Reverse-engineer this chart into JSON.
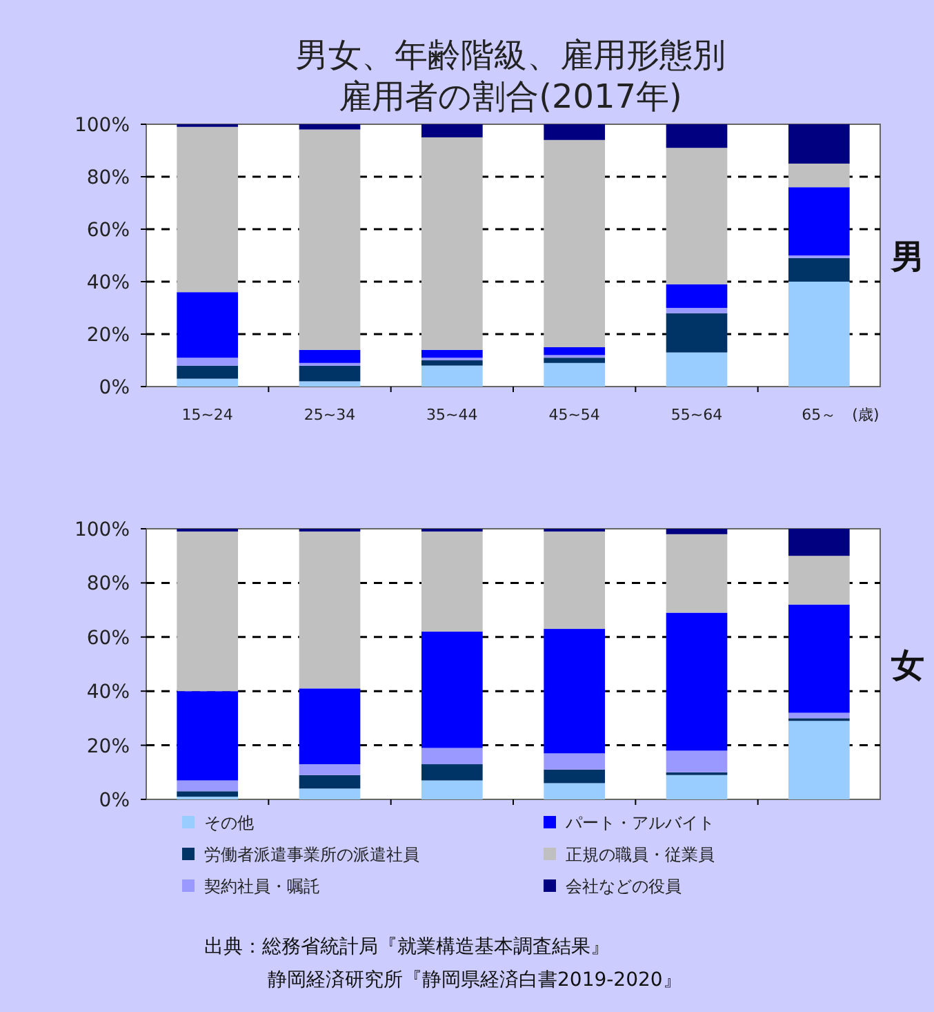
{
  "chart_data": [
    {
      "type": "bar",
      "stacked": true,
      "title": "男女、年齢階級、雇用形態別",
      "subtitle": "雇用者の割合(2017年)",
      "categories": [
        "15~24",
        "25~34",
        "35~44",
        "45~54",
        "55~64",
        "65～"
      ],
      "xlabel": "(歳)",
      "y2label": "男",
      "ylim": [
        0,
        100
      ],
      "yticks": [
        {
          "value": 0,
          "label": "0%"
        },
        {
          "value": 20,
          "label": "20%"
        },
        {
          "value": 40,
          "label": "40%"
        },
        {
          "value": 60,
          "label": "60%"
        },
        {
          "value": 80,
          "label": "80%"
        },
        {
          "value": 100,
          "label": "100%"
        }
      ],
      "grid": "y",
      "legend": false,
      "series": [
        {
          "color": "#99ccff",
          "values": [
            3,
            2,
            8,
            9,
            13,
            40
          ]
        },
        {
          "color": "#003366",
          "values": [
            5,
            6,
            2,
            2,
            15,
            9
          ]
        },
        {
          "color": "#9999ff",
          "values": [
            3,
            1,
            1,
            1,
            2,
            1
          ]
        },
        {
          "color": "#0000ff",
          "values": [
            25,
            5,
            3,
            3,
            9,
            26
          ]
        },
        {
          "color": "#c0c0c0",
          "values": [
            63,
            84,
            81,
            79,
            52,
            9
          ]
        },
        {
          "color": "#000080",
          "values": [
            1,
            2,
            5,
            6,
            9,
            15
          ]
        }
      ]
    },
    {
      "type": "bar",
      "stacked": true,
      "categories": [
        null,
        null,
        null,
        null,
        null,
        null
      ],
      "tick_labels": "y",
      "y2label": "女",
      "ylim": [
        0,
        100
      ],
      "yticks": [
        {
          "value": 0,
          "label": "0%"
        },
        {
          "value": 20,
          "label": "20%"
        },
        {
          "value": 40,
          "label": "40%"
        },
        {
          "value": 60,
          "label": "60%"
        },
        {
          "value": 80,
          "label": "80%"
        },
        {
          "value": 100,
          "label": "100%"
        }
      ],
      "grid": "y",
      "legend": "bottom",
      "series": [
        {
          "name": "その他",
          "color": "#99ccff",
          "values": [
            1,
            4,
            7,
            6,
            9,
            29
          ]
        },
        {
          "name": "労働者派遣事業所の派遣社員",
          "color": "#003366",
          "values": [
            2,
            5,
            6,
            5,
            1,
            1
          ]
        },
        {
          "name": "契約社員・嘱託",
          "color": "#9999ff",
          "values": [
            4,
            4,
            6,
            6,
            8,
            2
          ]
        },
        {
          "name": "パート・アルバイト",
          "color": "#0000ff",
          "values": [
            33,
            28,
            43,
            46,
            51,
            40
          ]
        },
        {
          "name": "正規の職員・従業員",
          "color": "#c0c0c0",
          "values": [
            59,
            58,
            37,
            36,
            29,
            18
          ]
        },
        {
          "name": "会社などの役員",
          "color": "#000080",
          "values": [
            1,
            1,
            1,
            1,
            2,
            10
          ]
        }
      ],
      "annotations": [
        "出典：総務省統計局『就業構造基本調査結果』",
        "静岡経済研究所『静岡県経済白書2019-2020』"
      ]
    }
  ]
}
